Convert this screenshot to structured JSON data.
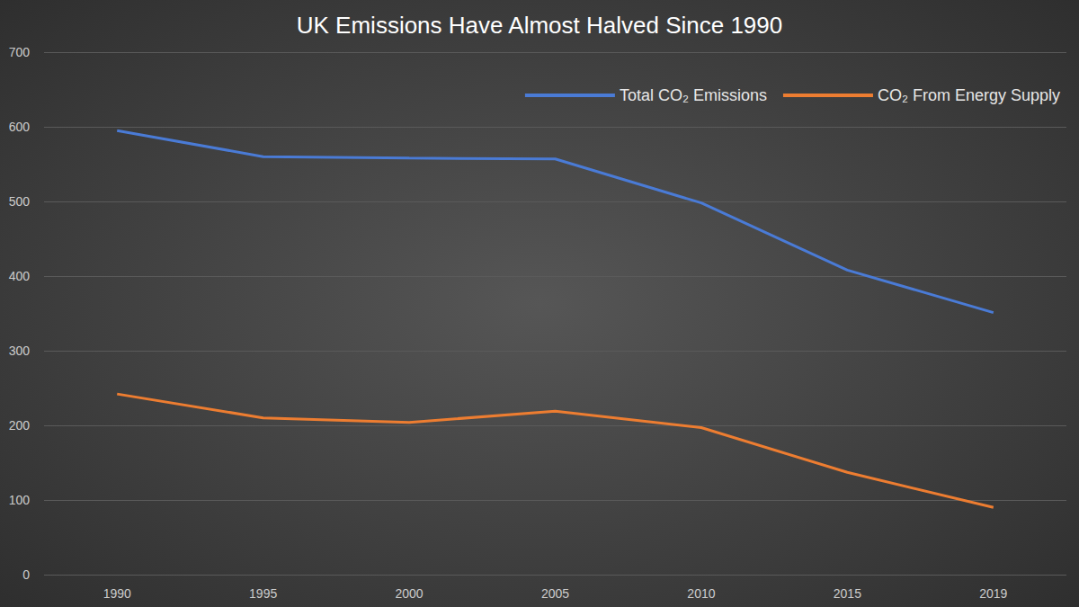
{
  "chart_data": {
    "type": "line",
    "title": "UK Emissions Have Almost Halved Since 1990",
    "categories": [
      "1990",
      "1995",
      "2000",
      "2005",
      "2010",
      "2015",
      "2019"
    ],
    "series": [
      {
        "name": "Total CO₂ Emissions",
        "color": "#4a7bd6",
        "values": [
          595,
          560,
          558,
          557,
          498,
          408,
          351
        ]
      },
      {
        "name": "CO₂ From Energy Supply",
        "color": "#ed7d31",
        "values": [
          242,
          210,
          204,
          219,
          197,
          137,
          90
        ]
      }
    ],
    "ylim": [
      0,
      700
    ],
    "yticks": [
      0,
      100,
      200,
      300,
      400,
      500,
      600,
      700
    ],
    "grid": true,
    "legend": "top-right"
  }
}
